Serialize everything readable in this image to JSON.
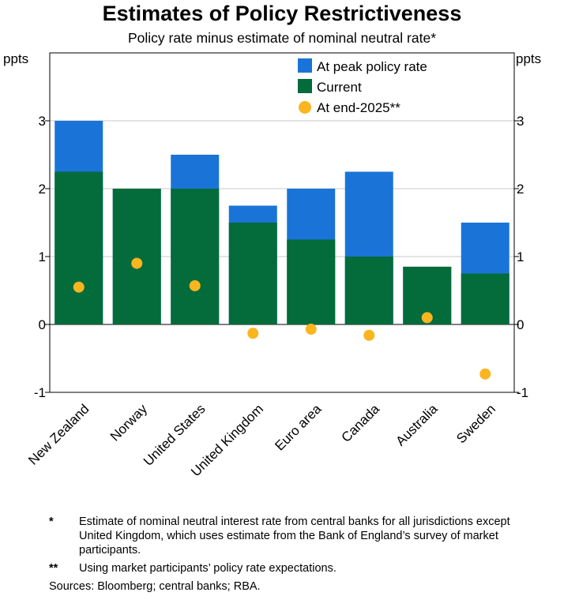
{
  "chart_data": {
    "type": "bar",
    "title": "Estimates of Policy Restrictiveness",
    "subtitle": "Policy rate minus estimate of nominal neutral rate*",
    "ylabel_left": "ppts",
    "ylabel_right": "ppts",
    "ylim": [
      -1,
      4
    ],
    "yticks": [
      -1,
      0,
      1,
      2,
      3
    ],
    "grid": true,
    "legend_position": "top-right",
    "categories": [
      "New Zealand",
      "Norway",
      "United States",
      "United Kingdom",
      "Euro area",
      "Canada",
      "Australia",
      "Sweden"
    ],
    "series": [
      {
        "name": "At peak policy rate",
        "kind": "bar",
        "color": "#1a74d8",
        "values": [
          3.0,
          2.0,
          2.5,
          1.75,
          2.0,
          2.25,
          0.85,
          1.5
        ]
      },
      {
        "name": "Current",
        "kind": "bar",
        "color": "#046b3b",
        "values": [
          2.25,
          2.0,
          2.0,
          1.5,
          1.25,
          1.0,
          0.85,
          0.75
        ]
      },
      {
        "name": "At end-2025**",
        "kind": "dot",
        "color": "#fbb51f",
        "values": [
          0.55,
          0.9,
          0.57,
          -0.13,
          -0.07,
          -0.16,
          0.1,
          -0.73
        ]
      }
    ]
  },
  "footnotes": [
    {
      "mark": "*",
      "text": "Estimate of nominal neutral interest rate from central banks for all jurisdictions except United Kingdom, which uses estimate from the Bank of England’s survey of market participants."
    },
    {
      "mark": "**",
      "text": "Using market participants’ policy rate expectations."
    }
  ],
  "sources": "Sources: Bloomberg; central banks; RBA."
}
